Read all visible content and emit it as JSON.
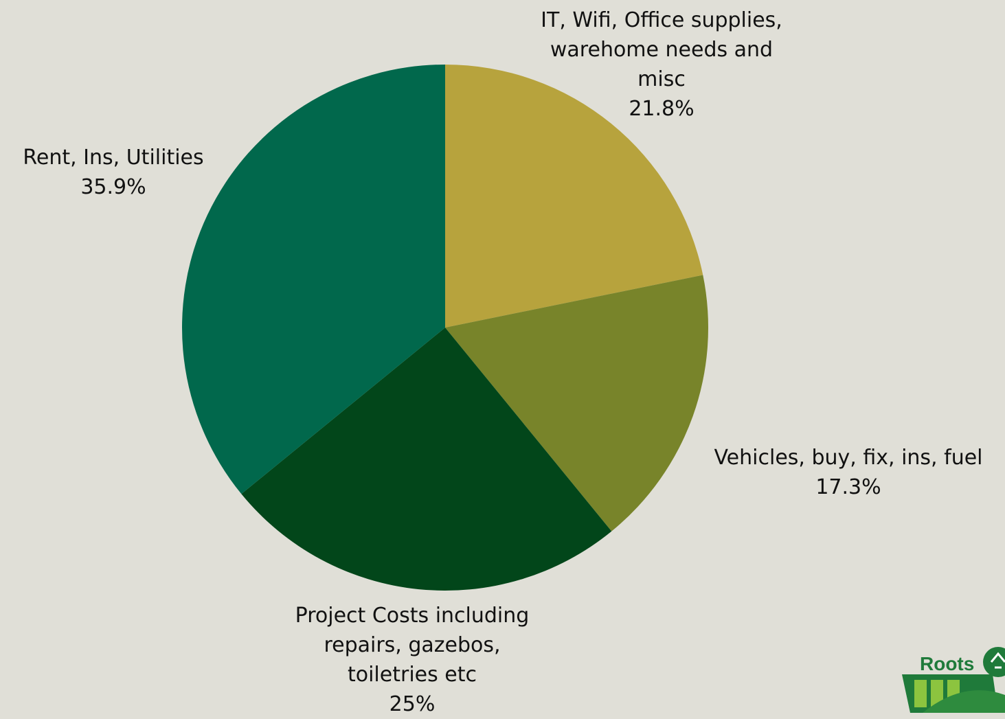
{
  "chart_data": {
    "type": "pie",
    "start_angle_deg": 0,
    "direction": "clockwise",
    "slices": [
      {
        "label_lines": [
          "IT, Wifi, Office supplies,",
          "warehome needs and",
          "misc"
        ],
        "value_text": "21.8%",
        "value": 21.8,
        "color": "#b7a33d"
      },
      {
        "label_lines": [
          "Vehicles, buy, fix, ins, fuel"
        ],
        "value_text": "17.3%",
        "value": 17.3,
        "color": "#78842a"
      },
      {
        "label_lines": [
          "Project Costs including",
          "repairs, gazebos,",
          "toiletries etc"
        ],
        "value_text": "25%",
        "value": 25,
        "color": "#02461a"
      },
      {
        "label_lines": [
          "Rent, Ins, Utilities"
        ],
        "value_text": "35.9%",
        "value": 35.9,
        "color": "#01684c"
      }
    ]
  },
  "logo": {
    "text": "Roots",
    "color": "#1f7a3a"
  }
}
